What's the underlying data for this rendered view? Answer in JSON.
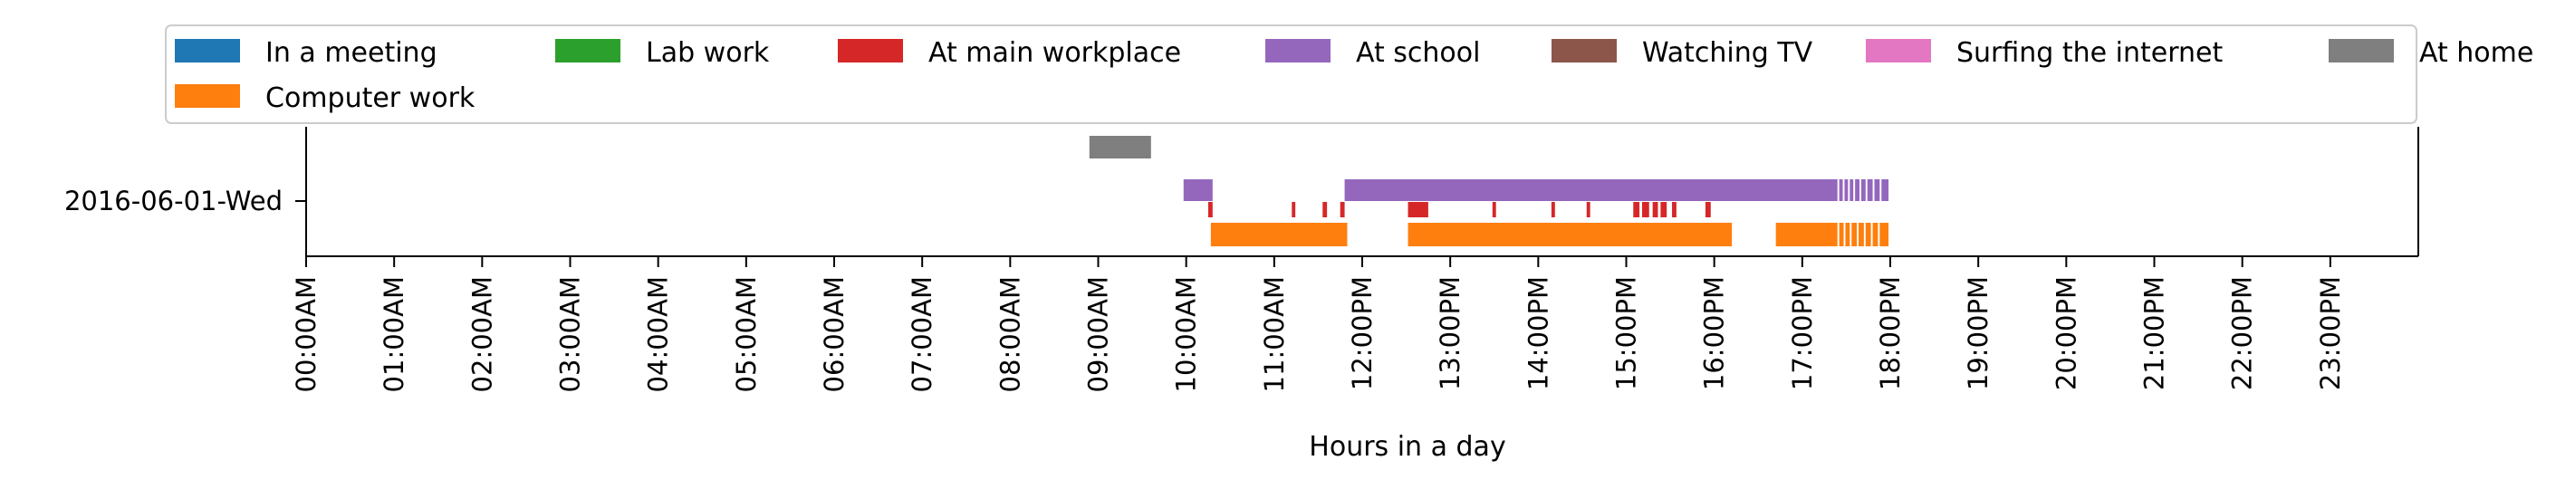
{
  "chart_data": {
    "type": "timeline",
    "xlabel": "Hours in a day",
    "xlim": [
      0,
      24
    ],
    "x_ticks": [
      "00:00AM",
      "01:00AM",
      "02:00AM",
      "03:00AM",
      "04:00AM",
      "05:00AM",
      "06:00AM",
      "07:00AM",
      "08:00AM",
      "09:00AM",
      "10:00AM",
      "11:00AM",
      "12:00PM",
      "13:00PM",
      "14:00PM",
      "15:00PM",
      "16:00PM",
      "17:00PM",
      "18:00PM",
      "19:00PM",
      "20:00PM",
      "21:00PM",
      "22:00PM",
      "23:00PM"
    ],
    "rows": [
      "2016-06-01-Wed"
    ],
    "legend": {
      "placement": "top-center",
      "columns": 7,
      "entries": [
        {
          "name": "In a meeting",
          "color": "#1f77b4"
        },
        {
          "name": "Lab work",
          "color": "#2ca02c"
        },
        {
          "name": "At main workplace",
          "color": "#d62728"
        },
        {
          "name": "At school",
          "color": "#9467bd"
        },
        {
          "name": "Watching TV",
          "color": "#8c564b"
        },
        {
          "name": "Surfing the internet",
          "color": "#e377c2"
        },
        {
          "name": "At home",
          "color": "#7f7f7f"
        },
        {
          "name": "Computer work",
          "color": "#ff7f0e"
        }
      ]
    },
    "lane_order": [
      "At home",
      "At school",
      "At main workplace",
      "Computer work"
    ],
    "series": [
      {
        "name": "At home",
        "color": "#7f7f7f",
        "intervals": [
          [
            8.9,
            9.6
          ]
        ]
      },
      {
        "name": "At school",
        "color": "#9467bd",
        "intervals": [
          [
            9.97,
            10.3
          ],
          [
            11.8,
            17.4
          ],
          [
            17.42,
            17.46
          ],
          [
            17.48,
            17.52
          ],
          [
            17.54,
            17.58
          ],
          [
            17.6,
            17.65
          ],
          [
            17.67,
            17.72
          ],
          [
            17.74,
            17.8
          ],
          [
            17.82,
            17.88
          ],
          [
            17.9,
            17.98
          ]
        ]
      },
      {
        "name": "At main workplace",
        "color": "#d62728",
        "intervals": [
          [
            10.25,
            10.3
          ],
          [
            11.2,
            11.24
          ],
          [
            11.55,
            11.6
          ],
          [
            11.75,
            11.8
          ],
          [
            12.52,
            12.75
          ],
          [
            13.48,
            13.52
          ],
          [
            14.15,
            14.19
          ],
          [
            14.55,
            14.59
          ],
          [
            15.08,
            15.15
          ],
          [
            15.18,
            15.26
          ],
          [
            15.3,
            15.36
          ],
          [
            15.39,
            15.46
          ],
          [
            15.52,
            15.57
          ],
          [
            15.9,
            15.96
          ]
        ]
      },
      {
        "name": "Computer work",
        "color": "#ff7f0e",
        "intervals": [
          [
            10.28,
            11.83
          ],
          [
            12.52,
            16.2
          ],
          [
            16.7,
            17.4
          ],
          [
            17.42,
            17.47
          ],
          [
            17.49,
            17.54
          ],
          [
            17.56,
            17.62
          ],
          [
            17.64,
            17.7
          ],
          [
            17.72,
            17.78
          ],
          [
            17.8,
            17.86
          ],
          [
            17.88,
            17.98
          ]
        ]
      }
    ],
    "grid": false
  }
}
